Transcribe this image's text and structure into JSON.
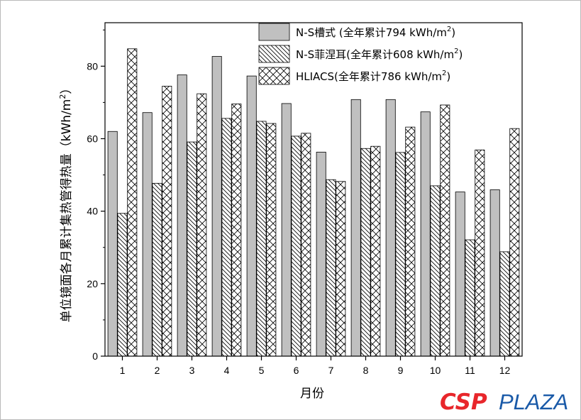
{
  "chart_data": {
    "type": "bar",
    "title": "",
    "xlabel": "月份",
    "ylabel": "单位镜面各月累计集热管得热量（kWh/m",
    "ylabel_sup": "2",
    "ylabel_close": "）",
    "categories": [
      "1",
      "2",
      "3",
      "4",
      "5",
      "6",
      "7",
      "8",
      "9",
      "10",
      "11",
      "12"
    ],
    "ylim": [
      0,
      92
    ],
    "yticks": [
      0,
      20,
      40,
      60,
      80
    ],
    "grid": false,
    "legend_position": "top-right",
    "series": [
      {
        "name": "N-S槽式 (全年累计794 kWh/m",
        "name_sup": "2",
        "name_close": ")",
        "fill": "#c0c0c0",
        "pattern": "solid",
        "values": [
          62,
          67.2,
          77.6,
          82.7,
          77.3,
          69.7,
          56.3,
          70.8,
          70.8,
          67.4,
          45.3,
          45.9
        ]
      },
      {
        "name": "N-S菲涅耳(全年累计608 kWh/m",
        "name_sup": "2",
        "name_close": ")",
        "fill": "#ffffff",
        "pattern": "diagonal",
        "values": [
          39.4,
          47.7,
          59.1,
          65.6,
          64.8,
          60.7,
          48.7,
          57.3,
          56.2,
          47,
          32.1,
          28.8
        ]
      },
      {
        "name": "HLIACS(全年累计786 kWh/m",
        "name_sup": "2",
        "name_close": ")",
        "fill": "#ffffff",
        "pattern": "crosshatch",
        "values": [
          84.8,
          74.5,
          72.4,
          69.6,
          64.2,
          61.5,
          48.2,
          57.9,
          63.2,
          69.3,
          56.9,
          62.8
        ]
      }
    ]
  },
  "watermark": {
    "csp": "CSP",
    "plaza": "PLAZA",
    "csp_color": "#e8262b",
    "plaza_color": "#1a5aa8"
  }
}
